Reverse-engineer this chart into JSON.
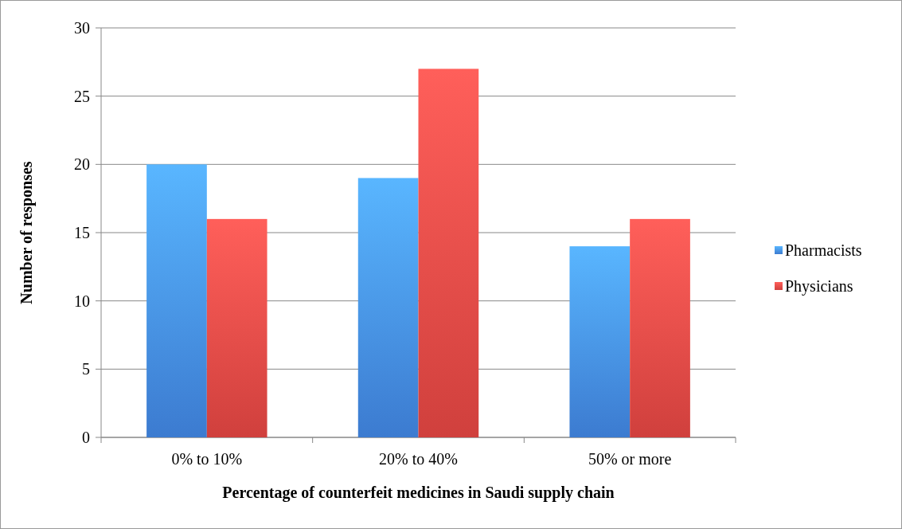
{
  "chart_data": {
    "type": "bar",
    "xlabel": "Percentage of counterfeit medicines in Saudi supply chain",
    "ylabel": "Number of responses",
    "categories": [
      "0% to 10%",
      "20% to 40%",
      "50% or more"
    ],
    "series": [
      {
        "name": "Pharmacists",
        "color": "#3c7bd0",
        "values": [
          20,
          19,
          14
        ]
      },
      {
        "name": "Physicians",
        "color": "#d0403d",
        "values": [
          16,
          27,
          16
        ]
      }
    ],
    "ylim": [
      0,
      30
    ],
    "yticks": [
      0,
      5,
      10,
      15,
      20,
      25,
      30
    ],
    "grid": "y",
    "legend": "right"
  }
}
